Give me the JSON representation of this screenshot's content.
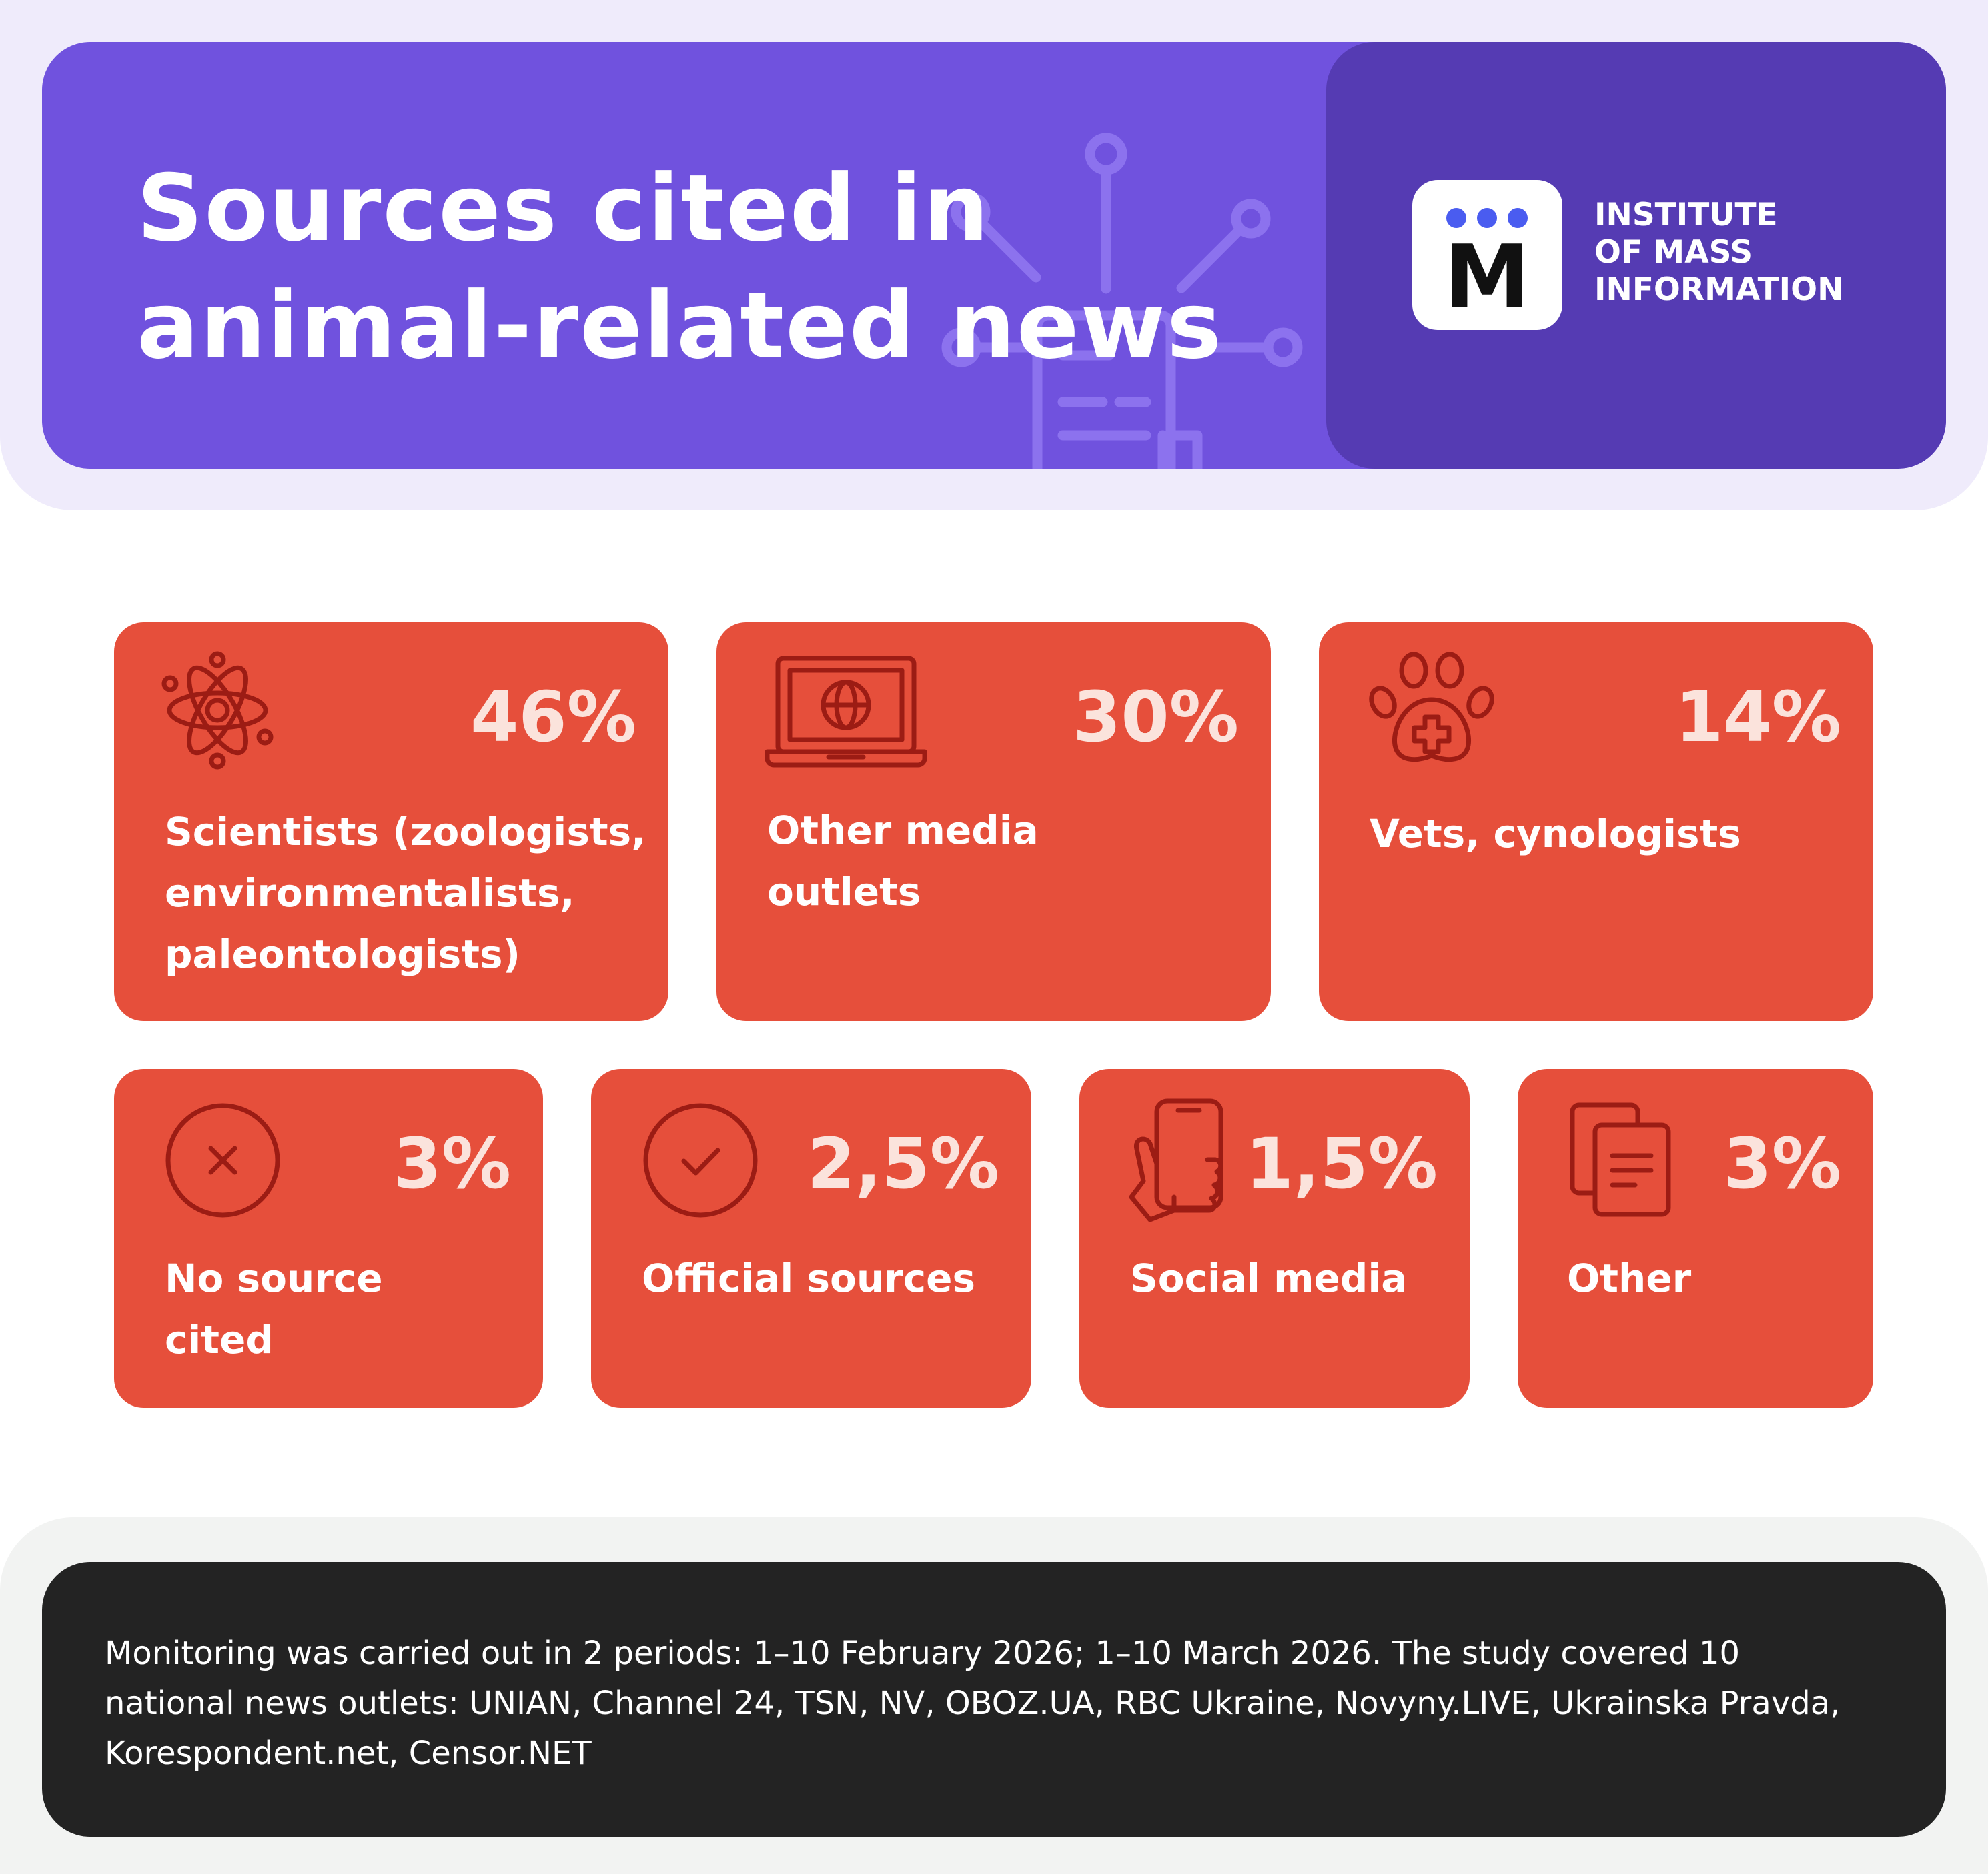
{
  "header": {
    "title_line1": "Sources cited in",
    "title_line2": "animal-related news"
  },
  "logo": {
    "mark_letter": "M",
    "line1": "INSTITUTE",
    "line2": "OF MASS",
    "line3": "INFORMATION"
  },
  "cards": [
    {
      "pct": "46%",
      "line1": "Scientists (zoologists,",
      "line2": "environmentalists,",
      "line3": "paleontologists)",
      "icon": "atom-icon"
    },
    {
      "pct": "30%",
      "line1": "Other media",
      "line2": "outlets",
      "icon": "laptop-globe-icon"
    },
    {
      "pct": "14%",
      "line1": "Vets, cynologists",
      "icon": "paw-cross-icon"
    },
    {
      "pct": "3%",
      "line1": "No source",
      "line2": "cited",
      "icon": "x-circle-icon"
    },
    {
      "pct": "2,5%",
      "line1": "Official sources",
      "icon": "check-circle-icon"
    },
    {
      "pct": "1,5%",
      "line1": "Social media",
      "icon": "hand-phone-icon"
    },
    {
      "pct": "3%",
      "line1": "Other",
      "icon": "documents-icon"
    }
  ],
  "footer": {
    "line1": "Monitoring was carried out in 2 periods: 1–10 February 2026; 1–10 March 2026. The study covered 10",
    "line2": "national news outlets: UNIAN, Channel 24, TSN, NV, OBOZ.UA, RBC Ukraine, Novyny.LIVE, Ukrainska Pravda,",
    "line3": "Korespondent.net, Censor.NET"
  },
  "colors": {
    "header_bg": "#7052de",
    "logo_panel_bg": "#553bb3",
    "card_bg": "#e64f3b",
    "card_icon": "#9c1c14",
    "pct_text": "#fbe3dc",
    "footer_bg": "#232323",
    "logo_dots": "#4a5cf0"
  }
}
